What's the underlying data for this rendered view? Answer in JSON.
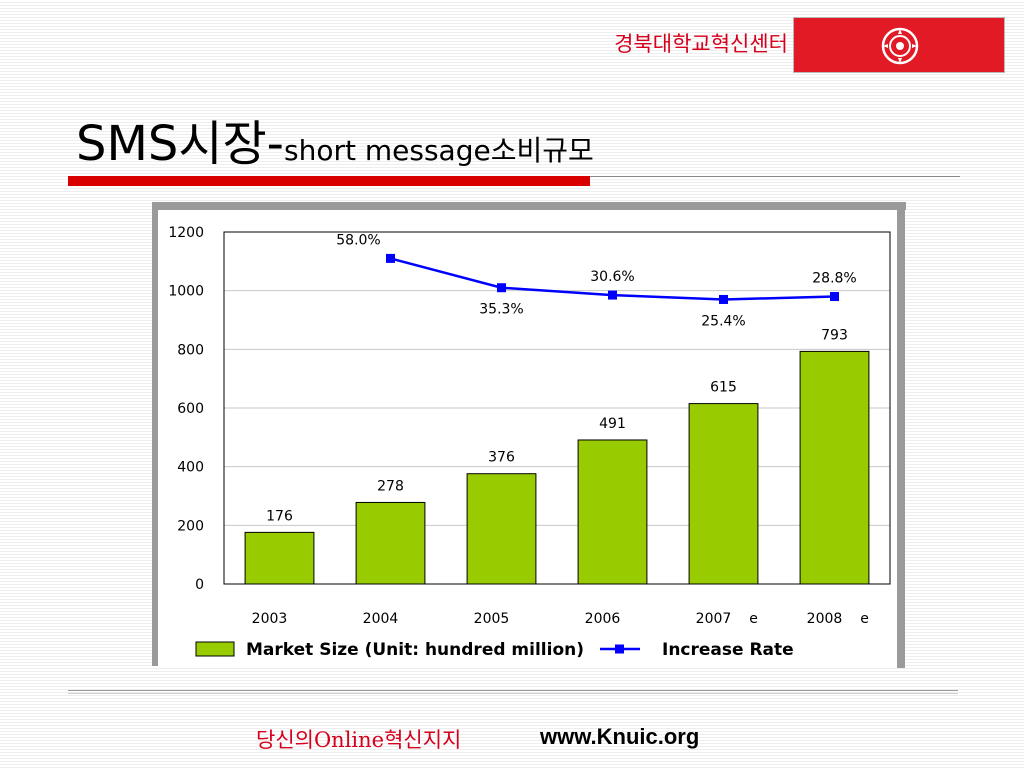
{
  "header": {
    "org_name": "경북대학교혁신센터",
    "logo_icon": "university-seal-icon"
  },
  "slide": {
    "title_main": "SMS시장-",
    "title_sub": "short message소비규모"
  },
  "footer": {
    "slogan": "당신의Online혁신지지",
    "url": "www.Knuic.org"
  },
  "colors": {
    "accent_red": "#d90000",
    "bar_green": "#99cc00",
    "line_blue": "#0000ff"
  },
  "chart_data": {
    "type": "bar",
    "categories": [
      "2003",
      "2004",
      "2005",
      "2006",
      "2007",
      "2008"
    ],
    "category_suffix": [
      "",
      "",
      "",
      "",
      "e",
      "e"
    ],
    "ylim": [
      0,
      1200
    ],
    "yticks": [
      0,
      200,
      400,
      600,
      800,
      1000,
      1200
    ],
    "grid": true,
    "legend_position": "bottom",
    "series": [
      {
        "name": "Market Size (Unit: hundred million)",
        "type": "bar",
        "values": [
          176,
          278,
          376,
          491,
          615,
          793
        ],
        "labels": [
          "176",
          "278",
          "376",
          "491",
          "615",
          "793"
        ]
      },
      {
        "name": "Increase Rate",
        "type": "line",
        "x": [
          "2004",
          "2005",
          "2006",
          "2007",
          "2008"
        ],
        "values": [
          1110,
          1010,
          985,
          970,
          980
        ],
        "labels": [
          "58.0%",
          "35.3%",
          "30.6%",
          "25.4%",
          "28.8%"
        ],
        "label_side": [
          "above",
          "below",
          "above",
          "below",
          "above"
        ]
      }
    ]
  }
}
